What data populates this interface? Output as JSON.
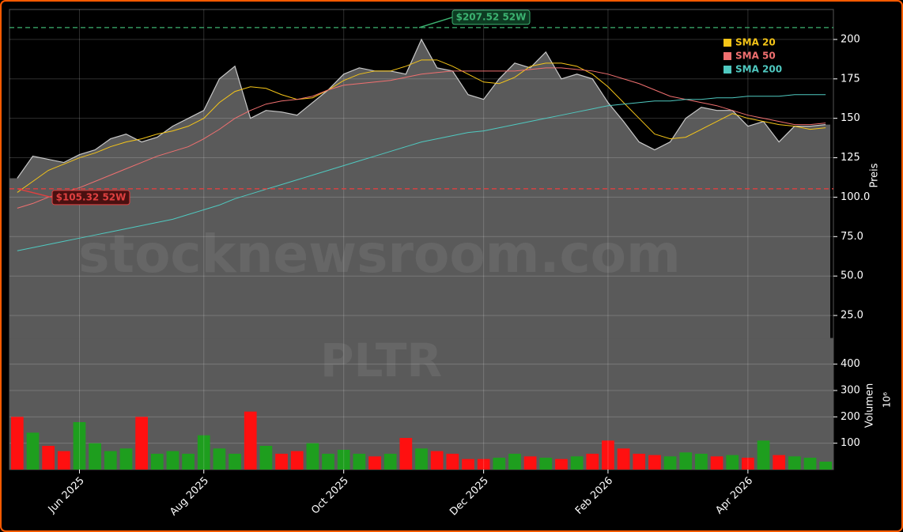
{
  "chart_data": {
    "type": "line",
    "watermarks": [
      "stocknewsroom.com",
      "PLTR"
    ],
    "categories": [
      null,
      null,
      null,
      null,
      "Jun 2025",
      null,
      null,
      null,
      null,
      null,
      null,
      null,
      "Aug 2025",
      null,
      null,
      null,
      null,
      null,
      null,
      null,
      null,
      "Oct 2025",
      null,
      null,
      null,
      null,
      null,
      null,
      null,
      null,
      "Dec 2025",
      null,
      null,
      null,
      null,
      null,
      null,
      null,
      "Feb 2026",
      null,
      null,
      null,
      null,
      null,
      null,
      null,
      null,
      "Apr 2026",
      null,
      null,
      null,
      null,
      null
    ],
    "price": {
      "color": "#c8c8c8",
      "fill": "#5a5a5a",
      "values": [
        112,
        126,
        124,
        122,
        127,
        130,
        137,
        140,
        135,
        138,
        145,
        150,
        155,
        175,
        183,
        150,
        155,
        154,
        152,
        160,
        168,
        178,
        182,
        180,
        180,
        178,
        200,
        182,
        180,
        165,
        162,
        175,
        185,
        182,
        192,
        175,
        178,
        175,
        160,
        148,
        135,
        130,
        135,
        150,
        157,
        155,
        155,
        145,
        148,
        135,
        145,
        145,
        146
      ]
    },
    "series": [
      {
        "name": "SMA 20",
        "color": "#f5c518",
        "values": [
          103,
          110,
          117,
          121,
          125,
          128,
          132,
          135,
          137,
          140,
          142,
          145,
          150,
          160,
          167,
          170,
          169,
          165,
          162,
          163,
          168,
          174,
          178,
          180,
          180,
          183,
          187,
          187,
          183,
          178,
          173,
          172,
          176,
          183,
          185,
          185,
          183,
          178,
          170,
          160,
          150,
          140,
          137,
          138,
          143,
          148,
          153,
          150,
          148,
          146,
          145,
          143,
          144
        ]
      },
      {
        "name": "SMA 50",
        "color": "#f07070",
        "values": [
          93,
          96,
          100,
          103,
          106,
          110,
          114,
          118,
          122,
          126,
          129,
          132,
          137,
          143,
          150,
          155,
          159,
          161,
          162,
          164,
          168,
          171,
          172,
          173,
          174,
          176,
          178,
          179,
          180,
          180,
          180,
          180,
          180,
          181,
          182,
          182,
          181,
          180,
          178,
          175,
          172,
          168,
          164,
          162,
          160,
          158,
          155,
          152,
          150,
          148,
          146,
          146,
          147
        ]
      },
      {
        "name": "SMA 200",
        "color": "#4fc9c0",
        "values": [
          66,
          68,
          70,
          72,
          74,
          76,
          78,
          80,
          82,
          84,
          86,
          89,
          92,
          95,
          99,
          102,
          105,
          108,
          111,
          114,
          117,
          120,
          123,
          126,
          129,
          132,
          135,
          137,
          139,
          141,
          142,
          144,
          146,
          148,
          150,
          152,
          154,
          156,
          158,
          159,
          160,
          161,
          161,
          162,
          162,
          163,
          163,
          164,
          164,
          164,
          165,
          165,
          165
        ]
      }
    ],
    "annotations": [
      {
        "label": "$207.52 52W",
        "value": 207.52,
        "color": "#3cb371"
      },
      {
        "label": "$105.32 52W",
        "value": 105.32,
        "color": "#e04040"
      }
    ],
    "ylabel": "Preis",
    "ylim": [
      10.5,
      219
    ],
    "yticks": [
      {
        "value": 25,
        "label": "25.0"
      },
      {
        "value": 50,
        "label": "50.0"
      },
      {
        "value": 75,
        "label": "75.0"
      },
      {
        "value": 100,
        "label": "100.0"
      },
      125,
      150,
      175,
      200
    ],
    "grid": true,
    "legend": "upper right",
    "volume": {
      "label": "Volumen",
      "exponent": "10⁶",
      "up_color": "#1e9e1e",
      "down_color": "#ff1010",
      "values": [
        200,
        140,
        90,
        70,
        180,
        100,
        70,
        80,
        200,
        60,
        70,
        60,
        130,
        80,
        60,
        220,
        90,
        60,
        70,
        100,
        60,
        75,
        60,
        50,
        60,
        120,
        80,
        70,
        60,
        40,
        40,
        45,
        60,
        50,
        45,
        40,
        50,
        60,
        110,
        80,
        60,
        55,
        50,
        65,
        60,
        50,
        55,
        45,
        110,
        55,
        50,
        45,
        30
      ],
      "ylim": [
        0,
        498
      ],
      "yticks": [
        100,
        200,
        300,
        400
      ]
    }
  }
}
